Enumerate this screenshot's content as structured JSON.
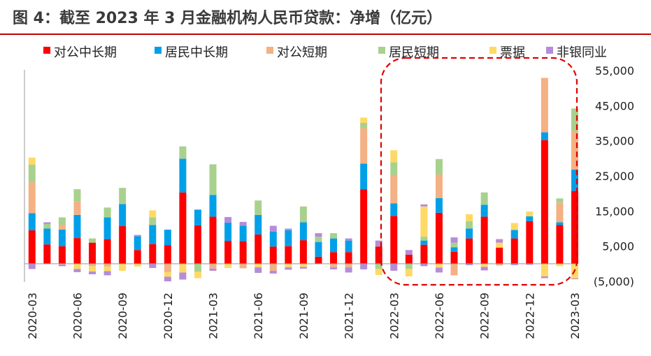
{
  "title": "图 4：截至 2023 年 3 月金融机构人民币贷款：净增（亿元）",
  "chart_data": {
    "type": "bar",
    "stacked": true,
    "title": "图 4：截至 2023 年 3 月金融机构人民币贷款：净增（亿元）",
    "xlabel": "",
    "ylabel": "",
    "ylim": [
      -5000,
      55000
    ],
    "yticks": [
      55000,
      45000,
      35000,
      25000,
      15000,
      5000,
      -5000
    ],
    "ytick_labels": [
      "55,000",
      "45,000",
      "35,000",
      "25,000",
      "15,000",
      "5,000",
      "(5,000)"
    ],
    "negative_tick_color": "#c00000",
    "legend_position": "top",
    "highlight": {
      "from": "2022-01",
      "to": "2023-03",
      "style": "red dashed rounded box"
    },
    "categories": [
      "2020-03",
      "2020-04",
      "2020-05",
      "2020-06",
      "2020-07",
      "2020-08",
      "2020-09",
      "2020-10",
      "2020-11",
      "2020-12",
      "2021-01",
      "2021-02",
      "2021-03",
      "2021-04",
      "2021-05",
      "2021-06",
      "2021-07",
      "2021-08",
      "2021-09",
      "2021-10",
      "2021-11",
      "2021-12",
      "2022-01",
      "2022-02",
      "2022-03",
      "2022-04",
      "2022-05",
      "2022-06",
      "2022-07",
      "2022-08",
      "2022-09",
      "2022-10",
      "2022-11",
      "2022-12",
      "2023-01",
      "2023-02",
      "2023-03"
    ],
    "x_tick_labels": [
      "2020-03",
      "2020-06",
      "2020-09",
      "2020-12",
      "2021-03",
      "2021-06",
      "2021-09",
      "2021-12",
      "2022-03",
      "2022-06",
      "2022-09",
      "2022-12",
      "2023-03"
    ],
    "series": [
      {
        "name": "对公中长期",
        "color": "#ff0000",
        "values": [
          9500,
          5500,
          5000,
          7300,
          6000,
          7000,
          10700,
          3900,
          5600,
          5300,
          20300,
          10900,
          13400,
          6500,
          6400,
          8300,
          4900,
          5000,
          6700,
          2000,
          3300,
          3300,
          21200,
          4900,
          13600,
          2600,
          5400,
          14500,
          3400,
          7200,
          13400,
          4600,
          7200,
          12100,
          35200,
          11000,
          20700
        ]
      },
      {
        "name": "居民中长期",
        "color": "#00a0e9",
        "values": [
          4900,
          4500,
          4700,
          6600,
          0,
          6200,
          6300,
          3900,
          5400,
          4400,
          9600,
          4500,
          6200,
          5200,
          4400,
          5600,
          4200,
          4500,
          5100,
          4200,
          3900,
          3300,
          7300,
          0,
          3600,
          0,
          1200,
          4200,
          1300,
          2800,
          3400,
          0,
          2400,
          1400,
          2200,
          800,
          6100
        ]
      },
      {
        "name": "对公短期",
        "color": "#f4b183",
        "values": [
          8800,
          0,
          1400,
          3900,
          0,
          0,
          0,
          0,
          0,
          0,
          0,
          0,
          0,
          0,
          0,
          0,
          0,
          0,
          0,
          0,
          0,
          0,
          10100,
          0,
          8100,
          0,
          0,
          6700,
          0,
          0,
          0,
          0,
          0,
          0,
          15500,
          5600,
          11000
        ]
      },
      {
        "name": "居民短期",
        "color": "#a9d18e",
        "values": [
          5000,
          1300,
          2100,
          3400,
          1200,
          2800,
          4600,
          0,
          2200,
          0,
          3500,
          0,
          8700,
          0,
          0,
          4100,
          0,
          0,
          4500,
          1500,
          1500,
          0,
          1500,
          0,
          3600,
          0,
          1100,
          4400,
          1300,
          2100,
          3500,
          0,
          0,
          0,
          0,
          1200,
          6400
        ]
      },
      {
        "name": "票据",
        "color": "#ffd966",
        "values": [
          2000,
          0,
          0,
          0,
          0,
          0,
          0,
          0,
          2000,
          0,
          0,
          0,
          0,
          0,
          0,
          0,
          0,
          0,
          0,
          0,
          0,
          0,
          1500,
          0,
          3400,
          0,
          8600,
          0,
          0,
          2000,
          0,
          1400,
          2000,
          1400,
          0,
          0,
          0
        ]
      },
      {
        "name": "非银同业",
        "color": "#b58cd9",
        "values": [
          0,
          500,
          0,
          0,
          0,
          0,
          0,
          400,
          0,
          0,
          0,
          0,
          0,
          1600,
          1100,
          0,
          1700,
          500,
          0,
          1000,
          0,
          600,
          0,
          1700,
          0,
          1300,
          600,
          0,
          1500,
          0,
          0,
          1000,
          0,
          0,
          0,
          0,
          0
        ]
      }
    ],
    "negatives": {
      "对公中长期": [
        0,
        0,
        0,
        0,
        0,
        0,
        0,
        0,
        0,
        0,
        0,
        0,
        0,
        0,
        0,
        0,
        0,
        0,
        0,
        0,
        0,
        0,
        0,
        0,
        0,
        0,
        0,
        0,
        0,
        0,
        0,
        0,
        0,
        0,
        0,
        0,
        0
      ],
      "对公短期": [
        0,
        0,
        0,
        0,
        -700,
        -800,
        0,
        0,
        0,
        -2400,
        0,
        0,
        -1400,
        0,
        -1300,
        0,
        -2000,
        0,
        0,
        0,
        -1000,
        -1000,
        0,
        0,
        0,
        0,
        0,
        0,
        -3300,
        0,
        0,
        -500,
        0,
        0,
        0,
        0,
        0
      ],
      "居民短期": [
        0,
        0,
        0,
        0,
        0,
        0,
        0,
        0,
        0,
        0,
        0,
        -2300,
        0,
        0,
        0,
        0,
        0,
        0,
        0,
        0,
        0,
        0,
        0,
        -1500,
        0,
        -1500,
        0,
        0,
        0,
        0,
        0,
        0,
        0,
        0,
        0,
        0,
        0
      ],
      "票据": [
        0,
        0,
        -200,
        -1500,
        -1500,
        -1300,
        -2000,
        -800,
        0,
        -1300,
        -2500,
        -1800,
        0,
        -1200,
        0,
        -1000,
        0,
        -1000,
        -900,
        0,
        0,
        0,
        0,
        -1700,
        0,
        -2100,
        0,
        -1100,
        0,
        0,
        -900,
        0,
        0,
        0,
        -3600,
        -700,
        -4200
      ],
      "非银同业": [
        -1500,
        0,
        -500,
        -900,
        -800,
        -1200,
        0,
        0,
        -1200,
        -1300,
        -2000,
        0,
        -600,
        0,
        0,
        -1600,
        -800,
        -700,
        -500,
        0,
        -600,
        -1500,
        -1600,
        0,
        -2000,
        0,
        -700,
        -1400,
        0,
        -400,
        -1000,
        0,
        -400,
        -300,
        -500,
        0,
        -200
      ]
    }
  }
}
